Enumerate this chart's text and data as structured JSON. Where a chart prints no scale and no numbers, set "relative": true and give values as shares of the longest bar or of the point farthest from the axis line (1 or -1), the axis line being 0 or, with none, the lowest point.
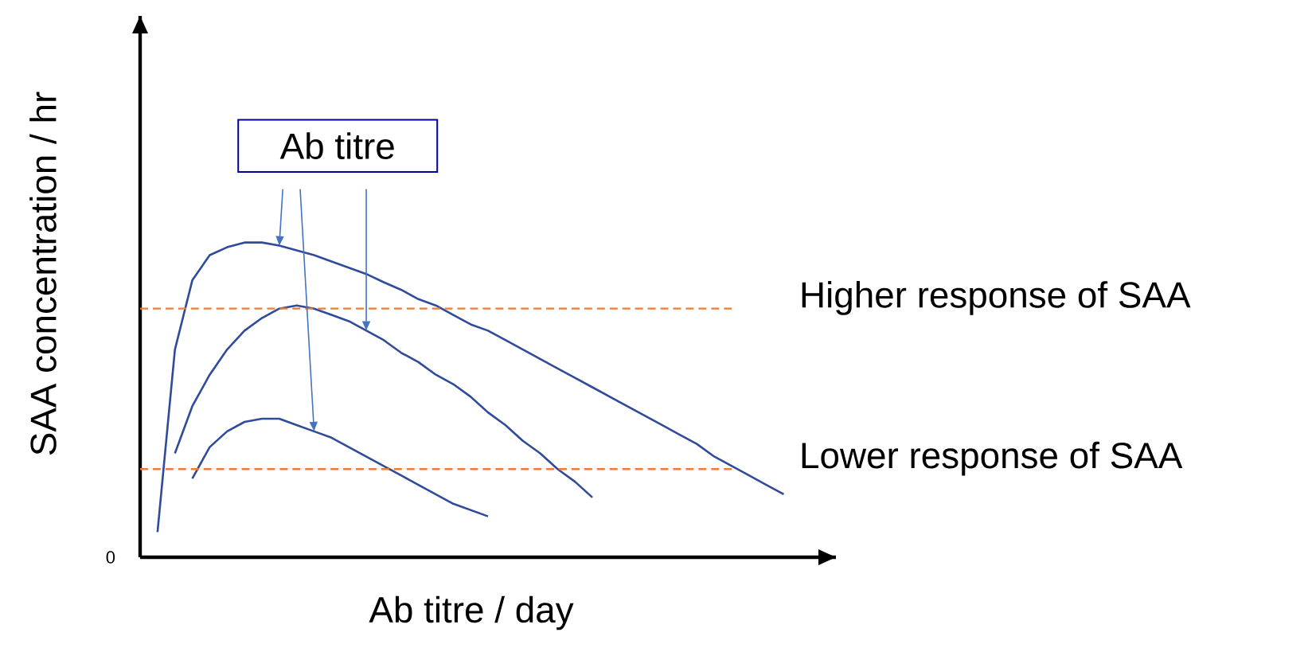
{
  "chart_data": {
    "type": "line",
    "relative": true,
    "xlabel": "Ab titre / day",
    "ylabel": "SAA concentration / hr",
    "marker": "none",
    "line_style": "solid",
    "annotations": [
      "Ab titre",
      "0"
    ],
    "ref_lines": [
      {
        "axis": "y",
        "value": 0.79,
        "label": "Higher response of SAA",
        "color": "#ed7d31",
        "line_style": "dashed"
      },
      {
        "axis": "y",
        "value": 0.28,
        "label": "Lower response of SAA",
        "color": "#ed7d31",
        "line_style": "dashed"
      }
    ],
    "categories": [
      null,
      null,
      null,
      null,
      null,
      null,
      null,
      null,
      null,
      null,
      null,
      null,
      null,
      null,
      null,
      null,
      null,
      null,
      null,
      null,
      null,
      null,
      null,
      null,
      null,
      null,
      null,
      null,
      null,
      null,
      null,
      null,
      null,
      null,
      null,
      null,
      null,
      null,
      null,
      null,
      null
    ],
    "series": [
      {
        "color": "#2f4b9a",
        "values": [
          null,
          0.08,
          0.66,
          0.88,
          0.96,
          0.985,
          1.0,
          1.0,
          0.99,
          0.975,
          0.96,
          0.94,
          0.92,
          0.9,
          0.874,
          0.85,
          0.82,
          0.8,
          0.77,
          0.74,
          0.72,
          0.69,
          0.66,
          0.63,
          0.6,
          0.57,
          0.54,
          0.51,
          0.48,
          0.45,
          0.42,
          0.39,
          0.36,
          0.32,
          0.29,
          0.26,
          0.23,
          0.2,
          null,
          null,
          null
        ]
      },
      {
        "color": "#2f4b9a",
        "values": [
          null,
          null,
          0.33,
          0.48,
          0.58,
          0.66,
          0.72,
          0.76,
          0.79,
          0.8,
          0.79,
          0.77,
          0.75,
          0.72,
          0.69,
          0.65,
          0.62,
          0.58,
          0.55,
          0.51,
          0.46,
          0.42,
          0.37,
          0.33,
          0.28,
          0.24,
          0.19,
          null,
          null,
          null,
          null,
          null,
          null,
          null,
          null,
          null,
          null,
          null,
          null,
          null,
          null
        ]
      },
      {
        "color": "#2f4b9a",
        "values": [
          null,
          null,
          null,
          0.25,
          0.35,
          0.4,
          0.43,
          0.44,
          0.44,
          0.42,
          0.4,
          0.38,
          0.35,
          0.32,
          0.29,
          0.26,
          0.23,
          0.2,
          0.17,
          0.15,
          0.13,
          null,
          null,
          null,
          null,
          null,
          null,
          null,
          null,
          null,
          null,
          null,
          null,
          null,
          null,
          null,
          null,
          null,
          null,
          null,
          null
        ]
      }
    ]
  }
}
